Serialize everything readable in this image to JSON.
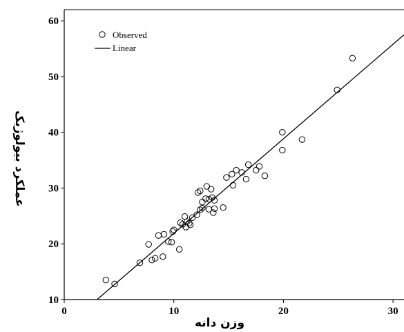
{
  "chart_data": {
    "type": "scatter",
    "xlabel": "وزن دانه",
    "ylabel": "عملکرد بیولوژیک",
    "xlim": [
      0,
      31
    ],
    "ylim": [
      10,
      62
    ],
    "x_ticks": [
      0,
      10,
      20,
      30
    ],
    "y_ticks": [
      10,
      20,
      30,
      40,
      50,
      60
    ],
    "grid": false,
    "legend_position": "top-left",
    "series": [
      {
        "name": "Observed",
        "marker": "open-circle",
        "points": [
          [
            3.8,
            13.5
          ],
          [
            4.6,
            12.8
          ],
          [
            6.9,
            16.6
          ],
          [
            7.7,
            19.9
          ],
          [
            8.0,
            17.1
          ],
          [
            8.3,
            17.4
          ],
          [
            8.6,
            21.5
          ],
          [
            9.0,
            17.7
          ],
          [
            9.1,
            21.7
          ],
          [
            9.5,
            20.4
          ],
          [
            9.8,
            20.3
          ],
          [
            9.9,
            22.2
          ],
          [
            10.0,
            22.5
          ],
          [
            10.5,
            19.0
          ],
          [
            10.6,
            23.8
          ],
          [
            10.8,
            23.5
          ],
          [
            11.0,
            24.9
          ],
          [
            11.1,
            23.0
          ],
          [
            11.2,
            24.0
          ],
          [
            11.4,
            23.7
          ],
          [
            11.5,
            23.4
          ],
          [
            11.7,
            24.7
          ],
          [
            12.1,
            25.2
          ],
          [
            12.2,
            29.2
          ],
          [
            12.4,
            26.1
          ],
          [
            12.4,
            29.5
          ],
          [
            12.6,
            26.4
          ],
          [
            12.6,
            27.5
          ],
          [
            12.9,
            28.1
          ],
          [
            13.0,
            30.3
          ],
          [
            13.2,
            28.0
          ],
          [
            13.2,
            26.2
          ],
          [
            13.4,
            29.8
          ],
          [
            13.5,
            28.3
          ],
          [
            13.6,
            25.6
          ],
          [
            13.7,
            27.8
          ],
          [
            13.7,
            26.3
          ],
          [
            14.5,
            26.5
          ],
          [
            14.8,
            31.9
          ],
          [
            15.3,
            32.5
          ],
          [
            15.4,
            30.5
          ],
          [
            15.7,
            33.2
          ],
          [
            16.2,
            32.8
          ],
          [
            16.6,
            31.6
          ],
          [
            16.8,
            34.2
          ],
          [
            17.5,
            33.2
          ],
          [
            17.8,
            33.9
          ],
          [
            18.3,
            32.2
          ],
          [
            19.9,
            40.0
          ],
          [
            19.9,
            36.8
          ],
          [
            21.7,
            38.7
          ],
          [
            24.9,
            47.6
          ],
          [
            26.3,
            53.3
          ]
        ]
      },
      {
        "name": "Linear",
        "line_from": [
          3.0,
          10.0
        ],
        "line_to": [
          31.0,
          57.5
        ]
      }
    ]
  }
}
